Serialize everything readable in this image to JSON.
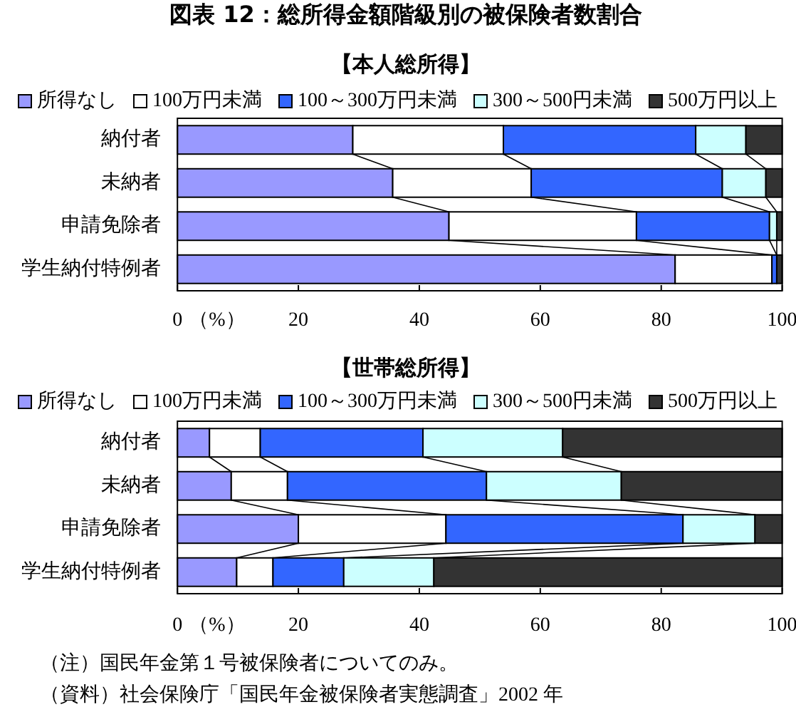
{
  "chart_data": [
    {
      "type": "bar",
      "title": "図表 12：総所得金額階級別の被保険者数割合",
      "subtitle": "【本人総所得】",
      "orientation": "horizontal",
      "stacked": true,
      "legend": "top",
      "categories": [
        "納付者",
        "未納者",
        "申請免除者",
        "学生納付特例者"
      ],
      "xlim": [
        0,
        100
      ],
      "xticks": [
        0,
        20,
        40,
        60,
        80,
        100
      ],
      "xlabel": "（%）",
      "series": [
        {
          "name": "所得なし",
          "color": "#9999ff",
          "values": [
            29.0,
            35.6,
            44.9,
            82.3
          ]
        },
        {
          "name": "100万円未満",
          "color": "#ffffff",
          "values": [
            24.9,
            22.9,
            31.0,
            16.0
          ]
        },
        {
          "name": "100～300万円未満",
          "color": "#3366ff",
          "values": [
            31.8,
            31.6,
            22.0,
            0.8
          ]
        },
        {
          "name": "300～500円未満",
          "color": "#ccffff",
          "values": [
            8.3,
            7.2,
            1.2,
            null
          ]
        },
        {
          "name": "500万円以上",
          "color": "#333333",
          "values": [
            6.0,
            2.7,
            0.9,
            0.9
          ]
        }
      ]
    },
    {
      "type": "bar",
      "title": "【世帯総所得】",
      "orientation": "horizontal",
      "stacked": true,
      "legend": "top",
      "categories": [
        "納付者",
        "未納者",
        "申請免除者",
        "学生納付特例者"
      ],
      "xlim": [
        0,
        100
      ],
      "xticks": [
        0,
        20,
        40,
        60,
        80,
        100
      ],
      "xlabel": "（%）",
      "series": [
        {
          "name": "所得なし",
          "color": "#9999ff",
          "values": [
            5.3,
            8.9,
            20.0,
            9.8
          ]
        },
        {
          "name": "100万円未満",
          "color": "#ffffff",
          "values": [
            8.4,
            9.3,
            24.4,
            6.0
          ]
        },
        {
          "name": "100～300万円未満",
          "color": "#3366ff",
          "values": [
            26.9,
            32.9,
            39.2,
            11.7
          ]
        },
        {
          "name": "300～500円未満",
          "color": "#ccffff",
          "values": [
            23.1,
            22.3,
            11.9,
            14.9
          ]
        },
        {
          "name": "500万円以上",
          "color": "#333333",
          "values": [
            36.3,
            26.6,
            4.5,
            57.6
          ]
        }
      ],
      "annotations": [
        "（注）国民年金第１号被保険者についてのみ。",
        "（資料）社会保険庁「国民年金被保険者実態調査」2002 年"
      ]
    }
  ]
}
